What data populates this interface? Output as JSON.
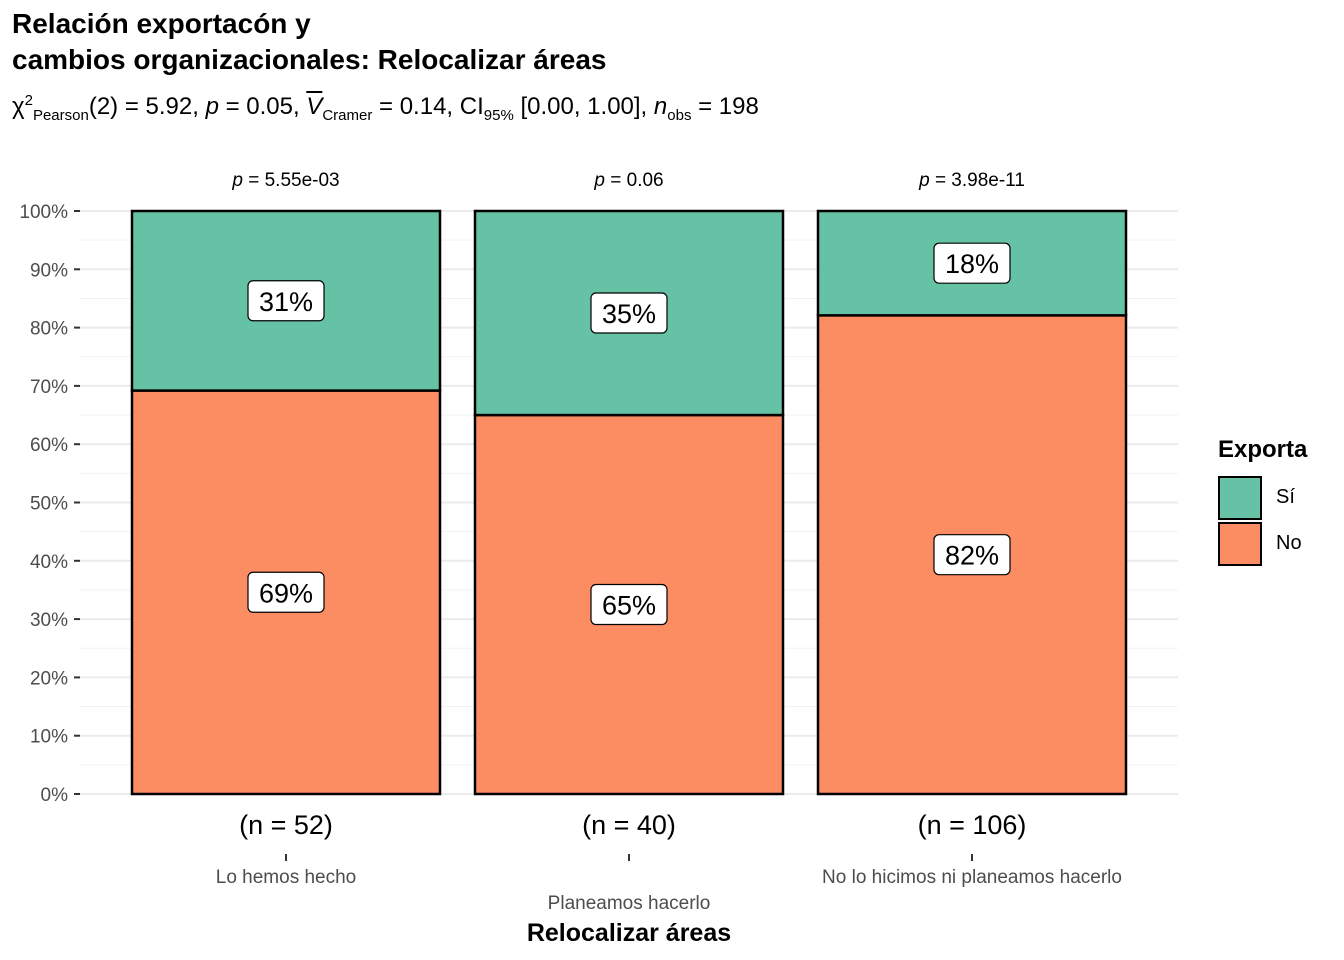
{
  "title_line1": "Relación exportacón y",
  "title_line2": "cambios organizacionales: Relocalizar áreas",
  "subtitle": {
    "chi": "χ",
    "chi_sup": "2",
    "chi_sub": "Pearson",
    "chi_val": "(2) = 5.92, ",
    "p_sym": "p",
    "p_val": " = 0.05, ",
    "v_sym": "V",
    "v_sub": "Cramer",
    "v_val": " = 0.14, CI",
    "ci_sub": "95%",
    "ci_val": " [0.00, 1.00], ",
    "n_sym": "n",
    "n_sub": "obs",
    "n_val": " = 198"
  },
  "legend": {
    "title": "Exporta",
    "items": [
      {
        "label": "Sí",
        "color": "#66C2A5"
      },
      {
        "label": "No",
        "color": "#FC8D62"
      }
    ]
  },
  "chart_data": {
    "type": "bar",
    "stacked": true,
    "xlabel": "Relocalizar áreas",
    "ylabel": "",
    "ylim": [
      0,
      100
    ],
    "yticks": [
      "0%",
      "10%",
      "20%",
      "30%",
      "40%",
      "50%",
      "60%",
      "70%",
      "80%",
      "90%",
      "100%"
    ],
    "categories": [
      "Lo hemos hecho",
      "Planeamos hacerlo",
      "No lo hicimos ni planeamos hacerlo"
    ],
    "n_labels": [
      "(n = 52)",
      "(n = 40)",
      "(n = 106)"
    ],
    "p_labels": [
      "= 5.55e-03",
      "= 0.06",
      "= 3.98e-11"
    ],
    "p_symbol": "p",
    "series": [
      {
        "name": "No",
        "color": "#FC8D62",
        "values": [
          69.2,
          65,
          82.1
        ],
        "labels": [
          "69%",
          "65%",
          "82%"
        ]
      },
      {
        "name": "Sí",
        "color": "#66C2A5",
        "values": [
          30.8,
          35,
          17.9
        ],
        "labels": [
          "31%",
          "35%",
          "18%"
        ]
      }
    ]
  }
}
